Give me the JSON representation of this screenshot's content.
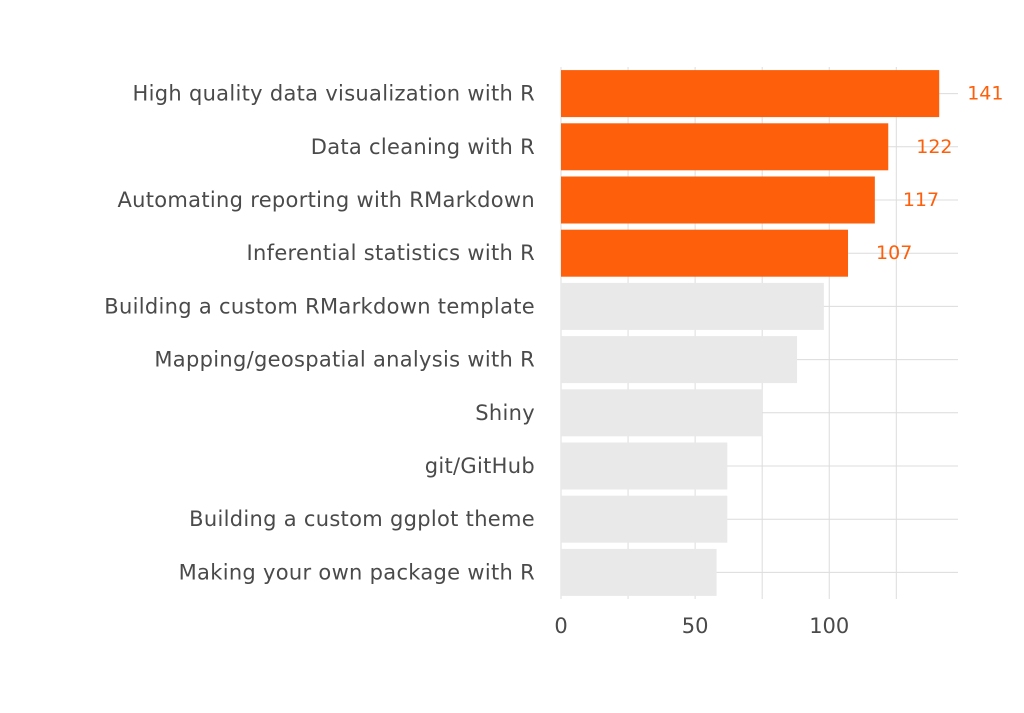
{
  "chart_data": {
    "type": "bar",
    "orientation": "horizontal",
    "categories": [
      "High quality data visualization with R",
      "Data cleaning with R",
      "Automating reporting with RMarkdown",
      "Inferential statistics with R",
      "Building a custom RMarkdown template",
      "Mapping/geospatial analysis with R",
      "Shiny",
      "git/GitHub",
      "Building a custom ggplot theme",
      "Making your own package with R"
    ],
    "values": [
      141,
      122,
      117,
      107,
      98,
      88,
      75,
      62,
      62,
      58
    ],
    "highlighted": [
      true,
      true,
      true,
      true,
      false,
      false,
      false,
      false,
      false,
      false
    ],
    "data_labels": [
      "141",
      "122",
      "117",
      "107",
      "",
      "",
      "",
      "",
      "",
      ""
    ],
    "x_ticks": [
      0,
      50,
      100
    ],
    "x_tick_labels": [
      "0",
      "50",
      "100"
    ],
    "x_minor_ticks": [
      25,
      75,
      125
    ],
    "xlim": [
      0,
      148
    ],
    "grid": true,
    "legend": "none",
    "title": "",
    "xlabel": "",
    "ylabel": "",
    "colors": {
      "highlight": "#fe5f0a",
      "muted": "#e9e9e9",
      "grid": "#dcdcdc",
      "text": "#4a4a4a"
    }
  }
}
